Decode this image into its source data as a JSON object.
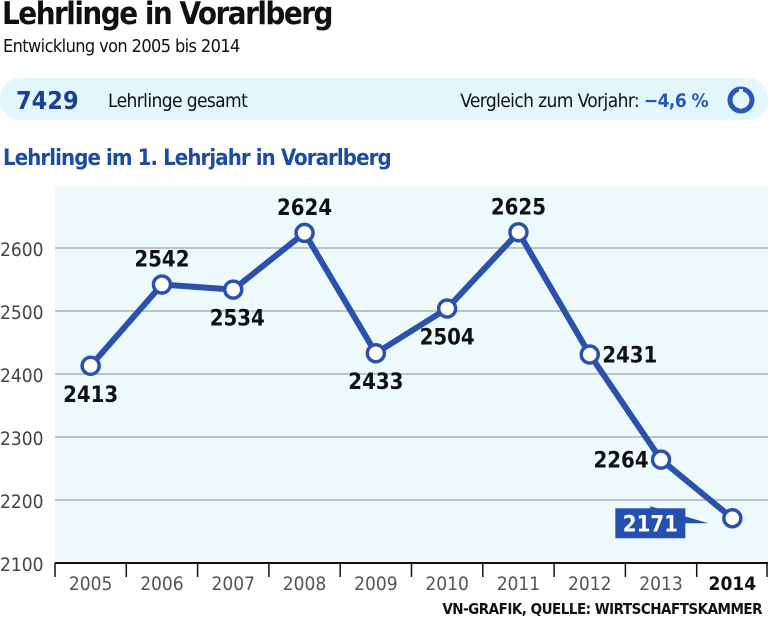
{
  "header": {
    "title": "Lehrlinge in Vorarlberg",
    "subtitle": "Entwicklung von 2005 bis 2014"
  },
  "summary": {
    "total": "7429",
    "total_label": "Lehrlinge gesamt",
    "comparison_label": "Vergleich zum Vorjahr:",
    "comparison_value": "−4,6 %",
    "comparison_icon": "down-arrow-circle-icon"
  },
  "chart_data": {
    "type": "line",
    "title": "Lehrlinge im 1. Lehrjahr in Vorarlberg",
    "categories": [
      "2005",
      "2006",
      "2007",
      "2008",
      "2009",
      "2010",
      "2011",
      "2012",
      "2013",
      "2014"
    ],
    "values": [
      2413,
      2542,
      2534,
      2624,
      2433,
      2504,
      2625,
      2431,
      2264,
      2171
    ],
    "ylim": [
      2100,
      2700
    ],
    "yticks": [
      2100,
      2200,
      2300,
      2400,
      2500,
      2600
    ],
    "grid": true,
    "highlight_category": "2014",
    "colors": {
      "line": "#2c51ad",
      "background": "#eef9fc",
      "highlight_label": "#2550b0"
    }
  },
  "source": "VN-GRAFIK, QUELLE: WIRTSCHAFTSKAMMER"
}
